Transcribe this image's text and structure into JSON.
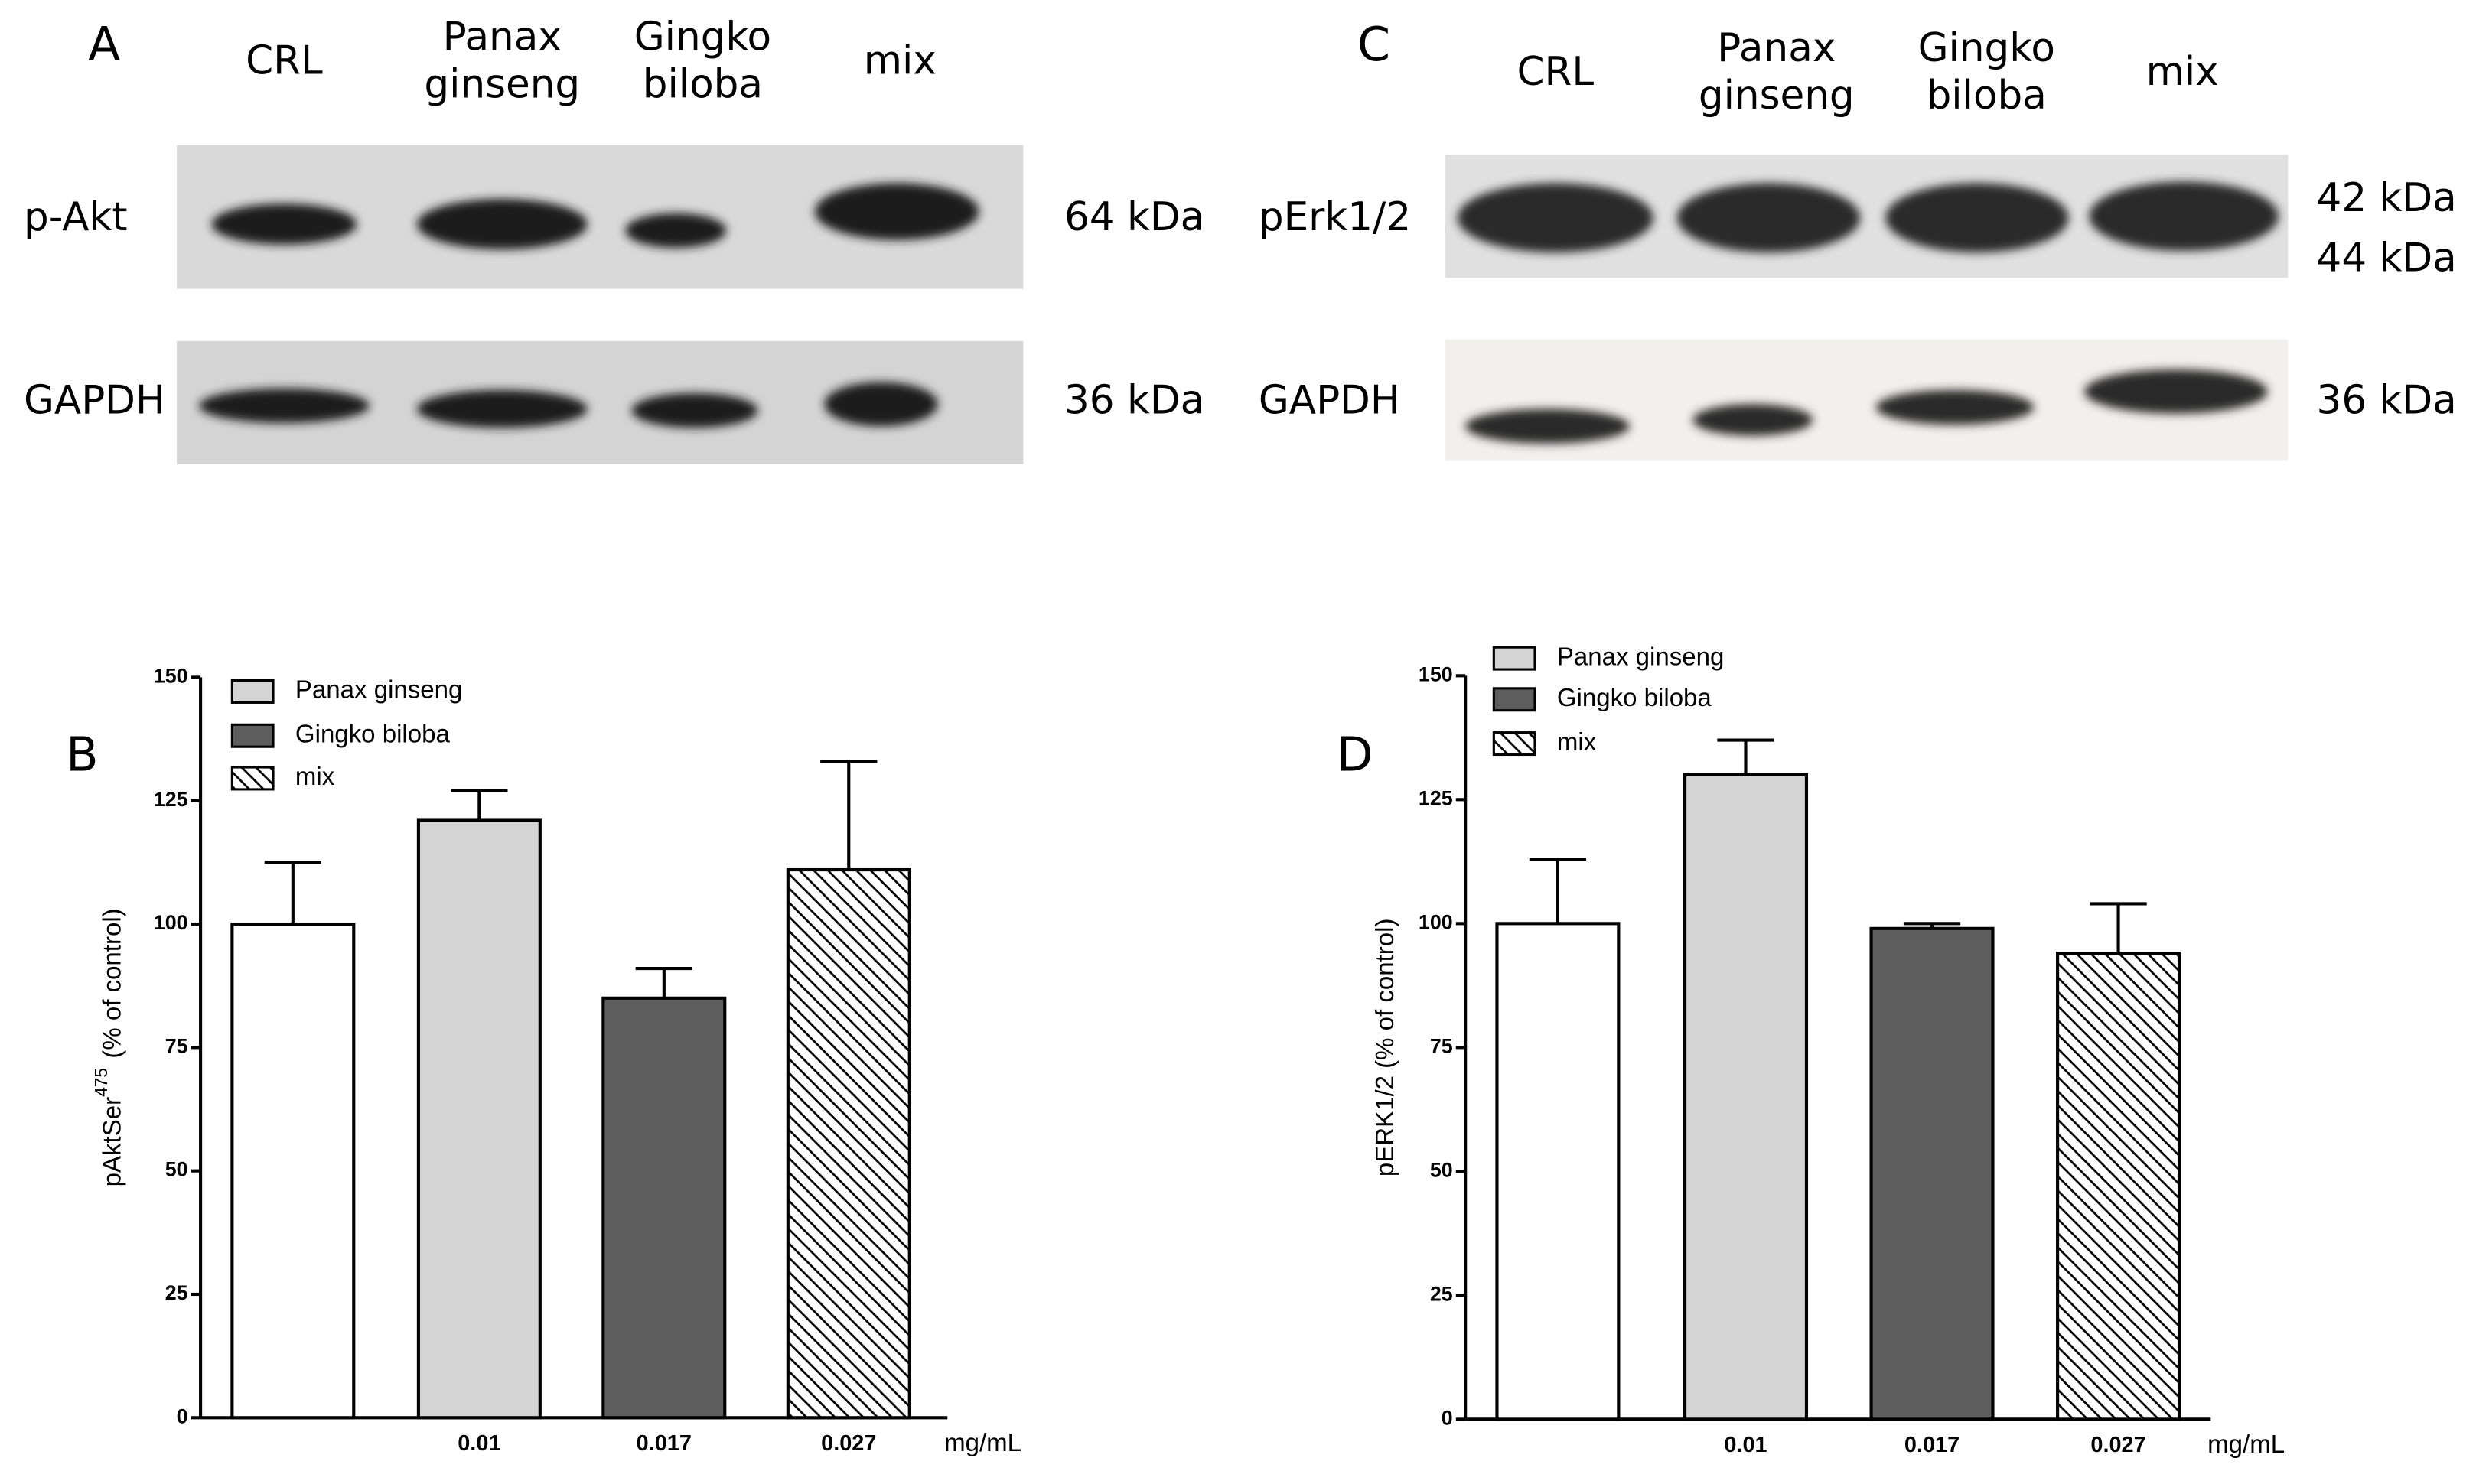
{
  "blots": [
    {
      "letter": "A",
      "lanes": [
        [
          "CRL"
        ],
        [
          "Panax",
          "ginseng"
        ],
        [
          "Gingko",
          "biloba"
        ],
        [
          "mix"
        ]
      ],
      "rows": [
        {
          "label": "p-Akt",
          "kda": [
            "64 kDa"
          ]
        },
        {
          "label": "GAPDH",
          "kda": [
            "36 kDa"
          ]
        }
      ]
    },
    {
      "letter": "C",
      "lanes": [
        [
          "CRL"
        ],
        [
          "Panax",
          "ginseng"
        ],
        [
          "Gingko",
          "biloba"
        ],
        [
          "mix"
        ]
      ],
      "rows": [
        {
          "label": "pErk1/2",
          "kda": [
            "42 kDa",
            "44 kDa"
          ]
        },
        {
          "label": "GAPDH",
          "kda": [
            "36 kDa"
          ]
        }
      ]
    }
  ],
  "chart_data": [
    {
      "type": "bar",
      "letter": "B",
      "y_label": "pAktSer",
      "y_label_sup": "475",
      "y_label_end": "(% of control)",
      "categories": [
        null,
        "0.01",
        "0.017",
        "0.027"
      ],
      "x_unit": "mg/mL",
      "values": [
        100,
        121,
        85,
        111
      ],
      "errors": [
        12.5,
        6,
        6,
        22
      ],
      "colors": [
        "#ffffff",
        "#d4d4d4",
        "#5e5e5e",
        "#ffffff"
      ],
      "hatch": [
        false,
        false,
        false,
        true
      ],
      "legend": [
        {
          "name": "Panax ginseng",
          "color": "#d4d4d4",
          "hatch": false
        },
        {
          "name": "Gingko biloba",
          "color": "#5e5e5e",
          "hatch": false
        },
        {
          "name": "mix",
          "color": "#ffffff",
          "hatch": true
        }
      ],
      "ylim": [
        0,
        150
      ],
      "yticks": [
        0,
        25,
        50,
        75,
        100,
        125,
        150
      ]
    },
    {
      "type": "bar",
      "letter": "D",
      "y_label": "pERK1/2 (% of control)",
      "categories": [
        null,
        "0.01",
        "0.017",
        "0.027"
      ],
      "x_unit": "mg/mL",
      "values": [
        100,
        130,
        99,
        94
      ],
      "errors": [
        13,
        7,
        1,
        10
      ],
      "colors": [
        "#ffffff",
        "#d4d4d4",
        "#5e5e5e",
        "#ffffff"
      ],
      "hatch": [
        false,
        false,
        false,
        true
      ],
      "legend": [
        {
          "name": "Panax ginseng",
          "color": "#d4d4d4",
          "hatch": false
        },
        {
          "name": "Gingko biloba",
          "color": "#5e5e5e",
          "hatch": false
        },
        {
          "name": "mix",
          "color": "#ffffff",
          "hatch": true
        }
      ],
      "ylim": [
        0,
        150
      ],
      "yticks": [
        0,
        25,
        50,
        75,
        100,
        125,
        150
      ]
    }
  ]
}
